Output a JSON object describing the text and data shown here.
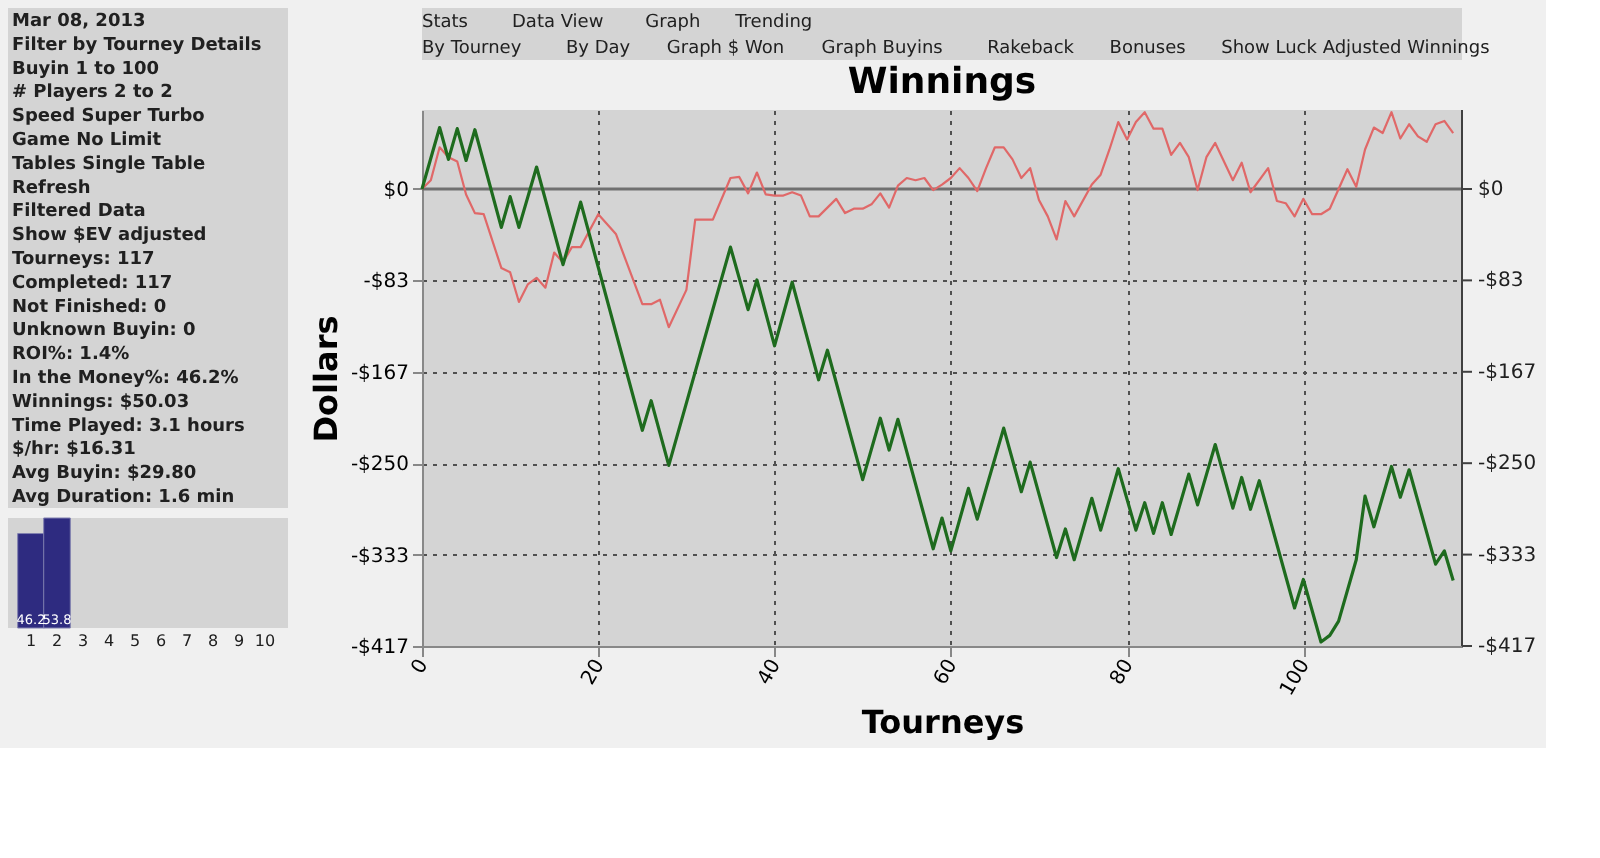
{
  "chart_data": [
    {
      "type": "bar",
      "categories": [
        "1",
        "2",
        "3",
        "4",
        "5",
        "6",
        "7",
        "8",
        "9",
        "10"
      ],
      "values": [
        46.2,
        53.8,
        null,
        null,
        null,
        null,
        null,
        null,
        null,
        null
      ],
      "color": "#2e2b80",
      "data_labels": true,
      "tick_labels": "x",
      "annotations": [
        "Mar 08, 2013",
        "Filter by Tourney Details",
        "Buyin  1  to  100",
        "# Players  2  to  2",
        "Speed  Super Turbo",
        "Game  No Limit",
        "Tables  Single Table",
        "Refresh",
        "Filtered Data",
        "Show $EV adjusted",
        "Tourneys:  117",
        "Completed:  117",
        "Not Finished:  0",
        "Unknown Buyin:  0",
        "ROI%:  1.4%",
        "In the Money%:  46.2%",
        "Winnings:  $50.03",
        "Time Played:  3.1 hours",
        "$/hr:  $16.31",
        "Avg Buyin:  $29.80",
        "Avg Duration:  1.6 min"
      ]
    },
    {
      "type": "line",
      "title": "Winnings",
      "xlabel": "Tourneys",
      "ylabel": "Dollars",
      "grid": true,
      "annotations": [
        "Stats",
        "Data View",
        "Graph",
        "Trending",
        "By Tourney",
        "By Day",
        "Graph $ Won",
        "Graph Buyins",
        "Rakeback",
        "Bonuses",
        "Show Luck Adjusted Winnings"
      ],
      "xlim": [
        0,
        118
      ],
      "xticks": [
        0,
        20,
        40,
        60,
        80,
        100
      ],
      "ylim": [
        -416.67,
        72
      ],
      "yticks": [
        {
          "value": 0,
          "label": "$0"
        },
        {
          "value": -83.33,
          "label": "-$83"
        },
        {
          "value": -166.67,
          "label": "-$167"
        },
        {
          "value": -250,
          "label": "-$250"
        },
        {
          "value": -333.33,
          "label": "-$333"
        },
        {
          "value": -416.67,
          "label": "-$417"
        }
      ],
      "y2lim": [
        -416.67,
        72
      ],
      "y2ticks": [
        {
          "value": 0,
          "label": "$0"
        },
        {
          "value": -83.33,
          "label": "-$83"
        },
        {
          "value": -166.67,
          "label": "-$167"
        },
        {
          "value": -250,
          "label": "-$250"
        },
        {
          "value": -333.33,
          "label": "-$333"
        },
        {
          "value": -416.67,
          "label": "-$417"
        }
      ],
      "ref_lines": [
        {
          "axis": "y",
          "value": 0,
          "color": "#707070"
        }
      ],
      "series": [
        {
          "color": "#e06868",
          "x": [
            0,
            1,
            2,
            3,
            4,
            5,
            6,
            7,
            9,
            10,
            11,
            12,
            13,
            14,
            15,
            16,
            17,
            18,
            20,
            22,
            25,
            26,
            27,
            28,
            30,
            31,
            33,
            35,
            36,
            37,
            38,
            39,
            40,
            41,
            42,
            43,
            44,
            45,
            47,
            48,
            49,
            50,
            51,
            52,
            53,
            54,
            55,
            56,
            57,
            58,
            59,
            60,
            61,
            62,
            63,
            64,
            65,
            66,
            67,
            68,
            69,
            70,
            71,
            72,
            73,
            74,
            76,
            77,
            78,
            79,
            80,
            81,
            82,
            83,
            84,
            85,
            86,
            87,
            88,
            89,
            90,
            92,
            93,
            94,
            96,
            97,
            98,
            99,
            100,
            101,
            102,
            103,
            104,
            105,
            106,
            107,
            108,
            109,
            110,
            111,
            112,
            113,
            114,
            115,
            116,
            117
          ],
          "values": [
            0,
            8,
            38,
            29,
            25,
            -5,
            -22,
            -23,
            -72,
            -76,
            -103,
            -87,
            -81,
            -90,
            -58,
            -67,
            -53,
            -53,
            -23,
            -41,
            -105,
            -105,
            -101,
            -126,
            -92,
            -28,
            -28,
            10,
            11,
            -4,
            15,
            -5,
            -6,
            -6,
            -3,
            -6,
            -25,
            -25,
            -9,
            -22,
            -18,
            -18,
            -14,
            -4,
            -17,
            3,
            10,
            8,
            10,
            -1,
            4,
            10,
            19,
            10,
            -2,
            19,
            38,
            38,
            27,
            10,
            19,
            -10,
            -25,
            -46,
            -11,
            -25,
            4,
            13,
            36,
            61,
            45,
            61,
            70,
            55,
            55,
            31,
            42,
            29,
            -1,
            29,
            42,
            8,
            24,
            -3,
            19,
            -11,
            -13,
            -25,
            -9,
            -23,
            -23,
            -18,
            0,
            18,
            2,
            36,
            56,
            51,
            70,
            46,
            59,
            48,
            43,
            59,
            62,
            51
          ]
        },
        {
          "color": "#1e6b1e",
          "x": [
            0,
            2,
            3,
            4,
            5,
            6,
            9,
            10,
            11,
            13,
            16,
            18,
            25,
            26,
            28,
            35,
            37,
            38,
            40,
            42,
            45,
            46,
            50,
            52,
            53,
            54,
            58,
            59,
            60,
            62,
            63,
            66,
            68,
            69,
            72,
            73,
            74,
            76,
            77,
            79,
            81,
            82,
            83,
            84,
            85,
            87,
            88,
            90,
            92,
            93,
            94,
            95,
            99,
            100,
            102,
            103,
            104,
            106,
            107,
            108,
            110,
            111,
            112,
            115,
            116,
            117
          ],
          "values": [
            0,
            56,
            27,
            55,
            26,
            54,
            -35,
            -7,
            -35,
            20,
            -69,
            -12,
            -220,
            -193,
            -252,
            -53,
            -110,
            -83,
            -143,
            -85,
            -174,
            -147,
            -265,
            -209,
            -238,
            -210,
            -328,
            -300,
            -330,
            -273,
            -301,
            -218,
            -276,
            -249,
            -336,
            -310,
            -338,
            -282,
            -311,
            -255,
            -311,
            -286,
            -314,
            -286,
            -315,
            -260,
            -288,
            -233,
            -291,
            -263,
            -292,
            -266,
            -382,
            -356,
            -413,
            -407,
            -394,
            -338,
            -280,
            -308,
            -253,
            -281,
            -256,
            -342,
            -330,
            -357
          ]
        }
      ]
    }
  ]
}
